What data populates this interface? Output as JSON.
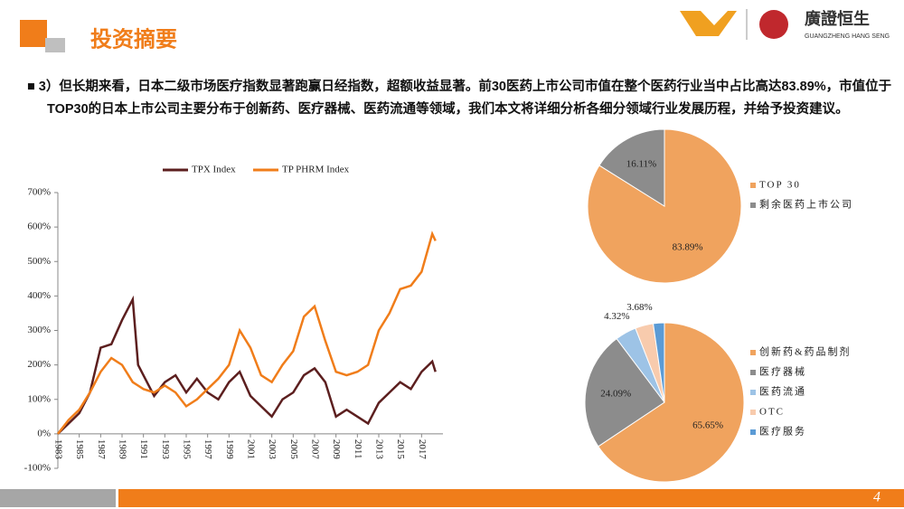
{
  "header": {
    "title": "投资摘要",
    "logo_name": "廣證恒生",
    "logo_sub": "GUANGZHENG HANG SENG"
  },
  "bullet": "3）但长期来看，日本二级市场医疗指数显著跑赢日经指数，超额收益显著。前30医药上市公司市值在整个医药行业当中占比高达83.89%，市值位于TOP30的日本上市公司主要分布于创新药、医疗器械、医药流通等领域，我们本文将详细分析各细分领域行业发展历程，并给予投资建议。",
  "page_number": "4",
  "chart_data": [
    {
      "type": "line",
      "x": [
        1983,
        1984,
        1985,
        1986,
        1987,
        1988,
        1989,
        1990,
        1990.5,
        1991,
        1992,
        1993,
        1994,
        1995,
        1996,
        1997,
        1998,
        1999,
        2000,
        2001,
        2002,
        2003,
        2004,
        2005,
        2006,
        2007,
        2008,
        2009,
        2010,
        2011,
        2012,
        2013,
        2014,
        2015,
        2016,
        2017,
        2018,
        2018.3
      ],
      "series": [
        {
          "name": "TPX Index",
          "color": "#5c1f1f",
          "values": [
            0,
            30,
            60,
            120,
            250,
            260,
            330,
            390,
            200,
            170,
            110,
            150,
            170,
            120,
            160,
            120,
            100,
            150,
            180,
            110,
            80,
            50,
            100,
            120,
            170,
            190,
            150,
            50,
            70,
            50,
            30,
            90,
            120,
            150,
            130,
            180,
            210,
            180
          ]
        },
        {
          "name": "TP PHRM Index",
          "color": "#f07d1a",
          "values": [
            0,
            40,
            70,
            120,
            180,
            220,
            200,
            150,
            140,
            130,
            120,
            140,
            120,
            80,
            100,
            130,
            160,
            200,
            300,
            250,
            170,
            150,
            200,
            240,
            340,
            370,
            270,
            180,
            170,
            180,
            200,
            300,
            350,
            420,
            430,
            470,
            580,
            560
          ]
        }
      ],
      "xlim": [
        1983,
        2019
      ],
      "xticks": [
        1983,
        1985,
        1987,
        1989,
        1991,
        1993,
        1995,
        1997,
        1999,
        2001,
        2003,
        2005,
        2007,
        2009,
        2011,
        2013,
        2015,
        2017
      ],
      "ylim": [
        -100,
        700
      ],
      "yticks": [
        {
          "value": -100,
          "label": "-100%"
        },
        {
          "value": 0,
          "label": "0%"
        },
        {
          "value": 100,
          "label": "100%"
        },
        {
          "value": 200,
          "label": "200%"
        },
        {
          "value": 300,
          "label": "300%"
        },
        {
          "value": 400,
          "label": "400%"
        },
        {
          "value": 500,
          "label": "500%"
        },
        {
          "value": 600,
          "label": "600%"
        },
        {
          "value": 700,
          "label": "700%"
        }
      ]
    },
    {
      "type": "pie",
      "categories": [
        "TOP 30",
        "剩余医药上市公司"
      ],
      "values": [
        83.89,
        16.11
      ],
      "value_labels": [
        "83.89%",
        "16.11%"
      ],
      "colors": [
        "#f0a35e",
        "#8c8c8c"
      ]
    },
    {
      "type": "pie",
      "categories": [
        "创新药&药品制剂",
        "医疗器械",
        "医药流通",
        "OTC",
        "医疗服务"
      ],
      "values": [
        65.65,
        24.09,
        4.32,
        3.68,
        2.26
      ],
      "value_labels": [
        "65.65%",
        "24.09%",
        "4.32%",
        "3.68%",
        null
      ],
      "colors": [
        "#f0a35e",
        "#8c8c8c",
        "#9dc3e6",
        "#f8cbad",
        "#5b9bd5"
      ]
    }
  ]
}
